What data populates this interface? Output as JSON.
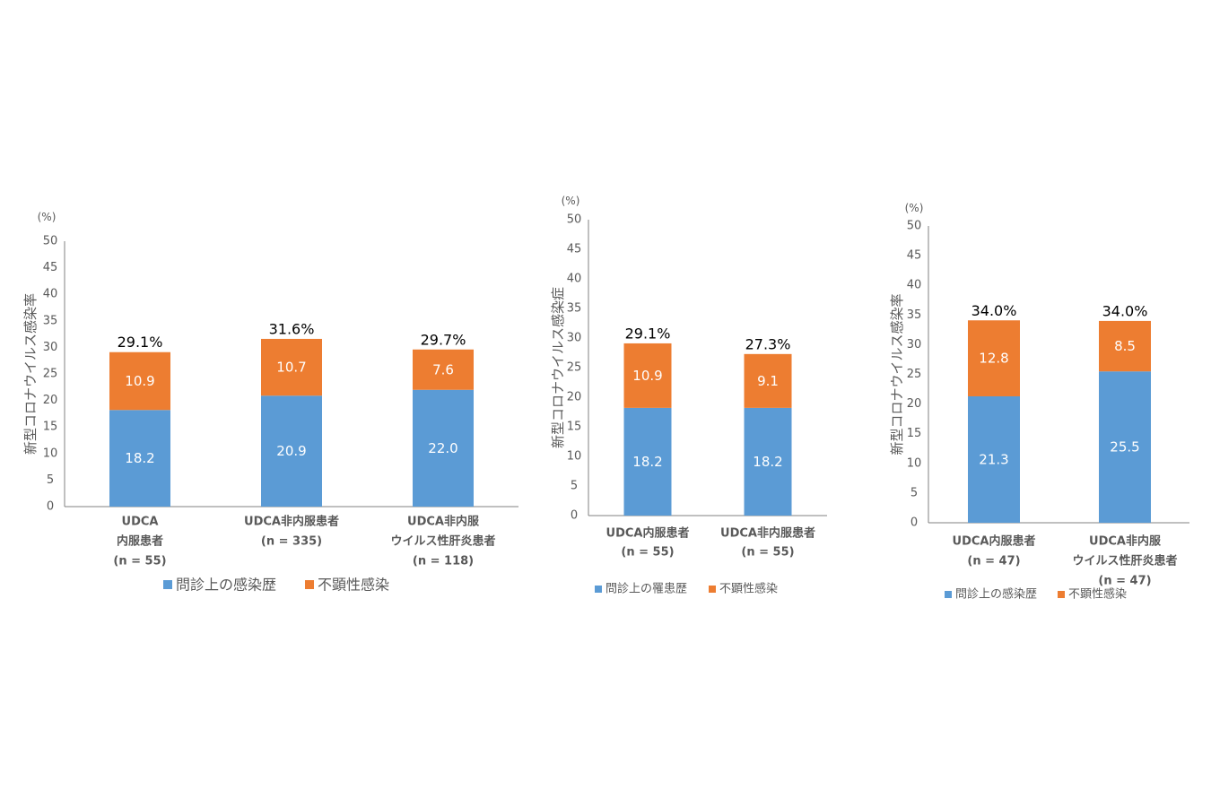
{
  "colors": {
    "history": "#5b9bd5",
    "inapparent": "#ed7d31",
    "axis": "#808080",
    "text": "#595959",
    "total": "#000000",
    "inner": "#ffffff"
  },
  "chart_data": [
    {
      "type": "bar",
      "stacked": true,
      "unit": "(%)",
      "ylabel": "新型コロナウイルス感染率",
      "ylim": [
        0,
        50
      ],
      "yticks": [
        0,
        5,
        10,
        15,
        20,
        25,
        30,
        35,
        40,
        45,
        50
      ],
      "categories": [
        [
          "UDCA",
          "内服患者",
          "(n = 55)"
        ],
        [
          "UDCA非内服患者",
          "(n = 335)"
        ],
        [
          "UDCA非内服",
          "ウイルス性肝炎患者",
          "(n = 118)"
        ]
      ],
      "series": [
        {
          "name": "問診上の感染歴",
          "values": [
            18.2,
            20.9,
            22.0
          ]
        },
        {
          "name": "不顕性感染",
          "values": [
            10.9,
            10.7,
            7.6
          ]
        }
      ],
      "totals": [
        "29.1%",
        "31.6%",
        "29.7%"
      ],
      "value_labels": [
        [
          "18.2",
          "20.9",
          "22.0"
        ],
        [
          "10.9",
          "10.7",
          "7.6"
        ]
      ],
      "legend_position": "bottom"
    },
    {
      "type": "bar",
      "stacked": true,
      "unit": "(%)",
      "ylabel": "新型コロナウイルス感染症",
      "ylim": [
        0,
        50
      ],
      "yticks": [
        0,
        5,
        10,
        15,
        20,
        25,
        30,
        35,
        40,
        45,
        50
      ],
      "categories": [
        [
          "UDCA内服患者",
          "(n = 55)"
        ],
        [
          "UDCA非内服患者",
          "(n = 55)"
        ]
      ],
      "series": [
        {
          "name": "問診上の罹患歴",
          "values": [
            18.2,
            18.2
          ]
        },
        {
          "name": "不顕性感染",
          "values": [
            10.9,
            9.1
          ]
        }
      ],
      "totals": [
        "29.1%",
        "27.3%"
      ],
      "value_labels": [
        [
          "18.2",
          "18.2"
        ],
        [
          "10.9",
          "9.1"
        ]
      ],
      "legend_position": "bottom"
    },
    {
      "type": "bar",
      "stacked": true,
      "unit": "(%)",
      "ylabel": "新型コロナウイルス感染率",
      "ylim": [
        0,
        50
      ],
      "yticks": [
        0,
        5,
        10,
        15,
        20,
        25,
        30,
        35,
        40,
        45,
        50
      ],
      "categories": [
        [
          "UDCA内服患者",
          "(n = 47)"
        ],
        [
          "UDCA非内服",
          "ウイルス性肝炎患者",
          "(n = 47)"
        ]
      ],
      "series": [
        {
          "name": "問診上の感染歴",
          "values": [
            21.3,
            25.5
          ]
        },
        {
          "name": "不顕性感染",
          "values": [
            12.8,
            8.5
          ]
        }
      ],
      "totals": [
        "34.0%",
        "34.0%"
      ],
      "value_labels": [
        [
          "21.3",
          "25.5"
        ],
        [
          "12.8",
          "8.5"
        ]
      ],
      "legend_position": "bottom"
    }
  ]
}
